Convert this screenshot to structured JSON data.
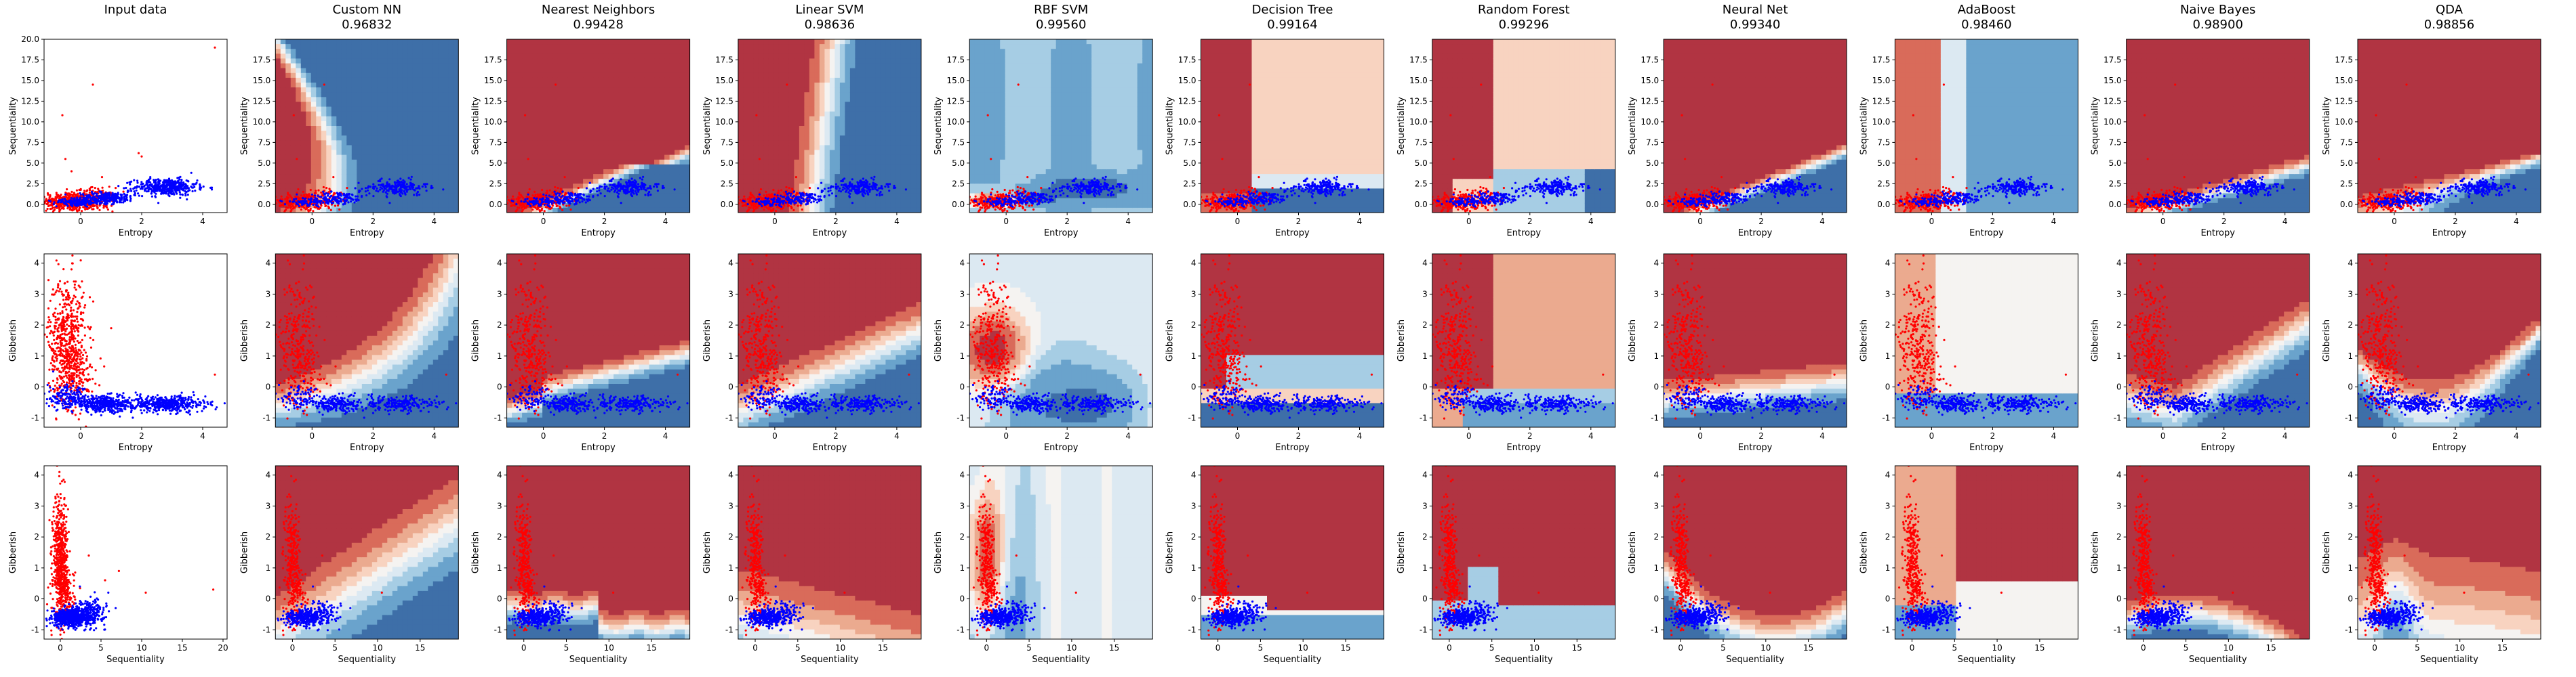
{
  "figure": {
    "type": "classifier-comparison-grid",
    "columns": [
      {
        "name": "Input data",
        "score": ""
      },
      {
        "name": "Custom NN",
        "score": "0.96832"
      },
      {
        "name": "Nearest Neighbors",
        "score": "0.99428"
      },
      {
        "name": "Linear SVM",
        "score": "0.98636"
      },
      {
        "name": "RBF SVM",
        "score": "0.99560"
      },
      {
        "name": "Decision Tree",
        "score": "0.99164"
      },
      {
        "name": "Random Forest",
        "score": "0.99296"
      },
      {
        "name": "Neural Net",
        "score": "0.99340"
      },
      {
        "name": "AdaBoost",
        "score": "0.98460"
      },
      {
        "name": "Naive Bayes",
        "score": "0.98900"
      },
      {
        "name": "QDA",
        "score": "0.98856"
      }
    ],
    "colors": {
      "class_a": "#ff0000",
      "class_b": "#0000ff",
      "map_low": "#2166ac",
      "map_high": "#b2182b"
    }
  },
  "chart_data": [
    {
      "type": "scatter",
      "row": 0,
      "xlabel": "Entropy",
      "ylabel": "Sequentiality",
      "xlim": [
        -1.2,
        4.8
      ],
      "ylim": [
        -1.0,
        20.0
      ],
      "input_ylim": [
        -1.0,
        20.0
      ],
      "xticks": [
        0,
        2,
        4
      ],
      "yticks": [
        0.0,
        2.5,
        5.0,
        7.5,
        10.0,
        12.5,
        15.0,
        17.5
      ],
      "yticks_input": [
        0.0,
        2.5,
        5.0,
        7.5,
        10.0,
        12.5,
        15.0,
        17.5,
        20.0
      ],
      "series": [
        {
          "class": "red",
          "clusters": [
            {
              "cx": -0.4,
              "cy": 0.3,
              "sx": 0.45,
              "sy": 0.6,
              "n": 420
            },
            {
              "cx": 0.5,
              "cy": 0.6,
              "sx": 0.3,
              "sy": 0.7,
              "n": 160
            }
          ],
          "outliers": [
            [
              0.4,
              14.5
            ],
            [
              2.0,
              5.8
            ],
            [
              -0.5,
              5.5
            ],
            [
              -0.3,
              4.0
            ],
            [
              0.7,
              3.3
            ],
            [
              4.4,
              19.0
            ],
            [
              -0.6,
              10.8
            ],
            [
              1.9,
              6.2
            ]
          ]
        },
        {
          "class": "blue",
          "clusters": [
            {
              "cx": 2.8,
              "cy": 2.1,
              "sx": 0.5,
              "sy": 0.5,
              "n": 420
            },
            {
              "cx": 0.9,
              "cy": 0.8,
              "sx": 0.45,
              "sy": 0.35,
              "n": 260
            },
            {
              "cx": -0.1,
              "cy": 0.25,
              "sx": 0.4,
              "sy": 0.2,
              "n": 160
            }
          ],
          "outliers": [
            [
              4.3,
              1.8
            ],
            [
              3.8,
              2.6
            ],
            [
              -0.5,
              1.2
            ]
          ]
        }
      ]
    },
    {
      "type": "scatter",
      "row": 1,
      "xlabel": "Entropy",
      "ylabel": "Gibberish",
      "xlim": [
        -1.2,
        4.8
      ],
      "ylim": [
        -1.3,
        4.3
      ],
      "input_ylim": [
        -1.3,
        4.3
      ],
      "xticks": [
        0,
        2,
        4
      ],
      "yticks": [
        -1,
        0,
        1,
        2,
        3,
        4
      ],
      "yticks_input": [
        -1,
        0,
        1,
        2,
        3,
        4
      ],
      "series": [
        {
          "class": "red",
          "clusters": [
            {
              "cx": -0.45,
              "cy": 1.6,
              "sx": 0.3,
              "sy": 1.0,
              "n": 520
            },
            {
              "cx": -0.2,
              "cy": 0.4,
              "sx": 0.35,
              "sy": 0.45,
              "n": 180
            }
          ],
          "outliers": [
            [
              -0.3,
              3.8
            ],
            [
              0.3,
              2.9
            ],
            [
              4.4,
              0.4
            ],
            [
              1.0,
              1.9
            ],
            [
              -0.9,
              0.2
            ]
          ]
        },
        {
          "class": "blue",
          "clusters": [
            {
              "cx": 2.9,
              "cy": -0.55,
              "sx": 0.6,
              "sy": 0.13,
              "n": 420
            },
            {
              "cx": 0.8,
              "cy": -0.55,
              "sx": 0.55,
              "sy": 0.13,
              "n": 400
            },
            {
              "cx": -0.4,
              "cy": -0.35,
              "sx": 0.35,
              "sy": 0.18,
              "n": 160
            }
          ],
          "outliers": [
            [
              -0.9,
              0.5
            ],
            [
              1.4,
              -0.2
            ]
          ]
        }
      ]
    },
    {
      "type": "scatter",
      "row": 2,
      "xlabel": "Sequentiality",
      "ylabel": "Gibberish",
      "xlim": [
        -2.0,
        19.5
      ],
      "ylim": [
        -1.3,
        4.3
      ],
      "input_xlim": [
        -2.0,
        20.5
      ],
      "input_ylim": [
        -1.3,
        4.3
      ],
      "xticks": [
        0,
        5,
        10,
        15
      ],
      "xticks_input": [
        0,
        5,
        10,
        15,
        20
      ],
      "yticks": [
        -1,
        0,
        1,
        2,
        3,
        4
      ],
      "yticks_input": [
        -1,
        0,
        1,
        2,
        3,
        4
      ],
      "series": [
        {
          "class": "red",
          "clusters": [
            {
              "cx": 0.0,
              "cy": 1.3,
              "sx": 0.45,
              "sy": 1.0,
              "n": 560
            },
            {
              "cx": 0.6,
              "cy": 0.2,
              "sx": 0.6,
              "sy": 0.4,
              "n": 160
            }
          ],
          "outliers": [
            [
              0.2,
              3.8
            ],
            [
              5.5,
              0.6
            ],
            [
              10.5,
              0.2
            ],
            [
              18.8,
              0.3
            ],
            [
              3.5,
              1.4
            ],
            [
              7.2,
              0.9
            ]
          ]
        },
        {
          "class": "blue",
          "clusters": [
            {
              "cx": 1.2,
              "cy": -0.6,
              "sx": 1.1,
              "sy": 0.14,
              "n": 560
            },
            {
              "cx": 3.5,
              "cy": -0.45,
              "sx": 1.0,
              "sy": 0.2,
              "n": 240
            }
          ],
          "outliers": [
            [
              6.8,
              -0.3
            ],
            [
              5.9,
              0.2
            ],
            [
              2.4,
              0.4
            ]
          ]
        }
      ]
    }
  ]
}
